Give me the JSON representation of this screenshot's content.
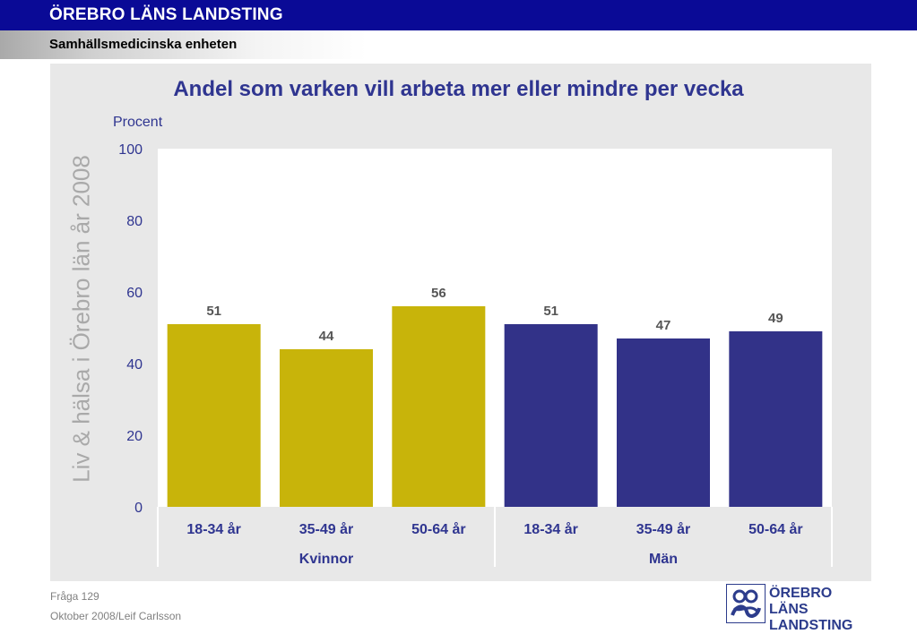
{
  "header": {
    "org": "ÖREBRO LÄNS LANDSTING",
    "unit": "Samhällsmedicinska enheten"
  },
  "side_label": "Liv & hälsa i Örebro län år 2008",
  "footer": {
    "question": "Fråga 129",
    "date_author": "Oktober 2008/Leif Carlsson"
  },
  "logo": {
    "line1": "ÖREBRO LÄNS",
    "line2": "LANDSTING"
  },
  "colors": {
    "header_bg": "#0a0a96",
    "kvinnor": "#c8b40a",
    "man": "#323288",
    "text_accent": "#2f3590"
  },
  "chart_data": {
    "type": "bar",
    "title": "Andel som varken vill arbeta mer eller mindre per vecka",
    "ylabel": "Procent",
    "ylim": [
      0,
      100
    ],
    "yticks": [
      0,
      20,
      40,
      60,
      80,
      100
    ],
    "grid": false,
    "categories": [
      "18-34 år",
      "35-49 år",
      "50-64 år",
      "18-34 år",
      "35-49 år",
      "50-64 år"
    ],
    "groups": [
      {
        "name": "Kvinnor",
        "span": [
          0,
          2
        ],
        "color": "#c8b40a"
      },
      {
        "name": "Män",
        "span": [
          3,
          5
        ],
        "color": "#323288"
      }
    ],
    "values": [
      51,
      44,
      56,
      51,
      47,
      49
    ],
    "data_labels": [
      "51",
      "44",
      "56",
      "51",
      "47",
      "49"
    ]
  }
}
